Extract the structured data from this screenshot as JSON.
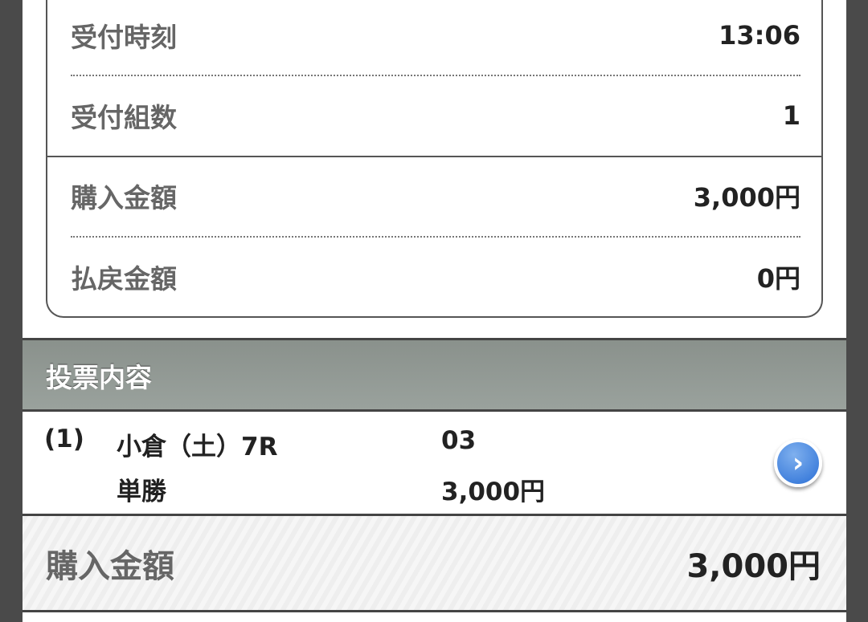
{
  "summary": [
    {
      "label": "受付時刻",
      "value": "13:06"
    },
    {
      "label": "受付組数",
      "value": "1"
    },
    {
      "label": "購入金額",
      "value": "3,000円"
    },
    {
      "label": "払戻金額",
      "value": "0円"
    }
  ],
  "section": {
    "title": "投票内容"
  },
  "bets": [
    {
      "index": "(1)",
      "race": "小倉（土）7R",
      "type": "単勝",
      "number": "03",
      "amount": "3,000円",
      "icon": "chevron-right-icon"
    }
  ],
  "total": {
    "label": "購入金額",
    "value": "3,000円"
  },
  "colors": {
    "accent": "#2a6fd6",
    "header": "#959d98"
  }
}
